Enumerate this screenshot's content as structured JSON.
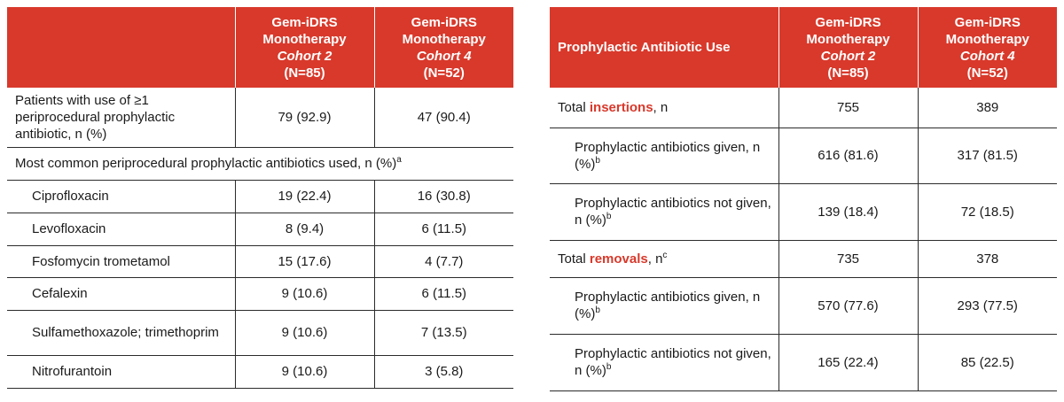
{
  "left_table": {
    "header": {
      "col1_label": "",
      "col2": {
        "line1": "Gem-iDRS",
        "line2": "Monotherapy",
        "line3": "Cohort 2",
        "line4": "(N=85)"
      },
      "col3": {
        "line1": "Gem-iDRS",
        "line2": "Monotherapy",
        "line3": "Cohort 4",
        "line4": "(N=52)"
      }
    },
    "summary_row": {
      "label": "Patients with use of ≥1 periprocedural prophylactic antibiotic, n (%)",
      "cohort2": "79 (92.9)",
      "cohort4": "47 (90.4)"
    },
    "section_row": {
      "label": "Most common periprocedural prophylactic antibiotics used, n (%)",
      "sup": "a"
    },
    "rows": [
      {
        "label": "Ciprofloxacin",
        "cohort2": "19 (22.4)",
        "cohort4": "16 (30.8)"
      },
      {
        "label": "Levofloxacin",
        "cohort2": "8 (9.4)",
        "cohort4": "6 (11.5)"
      },
      {
        "label": "Fosfomycin trometamol",
        "cohort2": "15 (17.6)",
        "cohort4": "4 (7.7)"
      },
      {
        "label": "Cefalexin",
        "cohort2": "9 (10.6)",
        "cohort4": "6 (11.5)"
      },
      {
        "label": "Sulfamethoxazole; trimethoprim",
        "cohort2": "9 (10.6)",
        "cohort4": "7 (13.5)"
      },
      {
        "label": "Nitrofurantoin",
        "cohort2": "9 (10.6)",
        "cohort4": "3 (5.8)"
      }
    ]
  },
  "right_table": {
    "header": {
      "col1_label": "Prophylactic Antibiotic Use",
      "col2": {
        "line1": "Gem-iDRS",
        "line2": "Monotherapy",
        "line3": "Cohort 2",
        "line4": "(N=85)"
      },
      "col3": {
        "line1": "Gem-iDRS",
        "line2": "Monotherapy",
        "line3": "Cohort 4",
        "line4": "(N=52)"
      }
    },
    "insertions": {
      "prefix": "Total",
      "highlight": "insertions",
      "suffix": ", n",
      "cohort2": "755",
      "cohort4": "389"
    },
    "insertions_given": {
      "label": "Prophylactic antibiotics given, n (%)",
      "sup": "b",
      "cohort2": "616 (81.6)",
      "cohort4": "317 (81.5)"
    },
    "insertions_not_given": {
      "label": "Prophylactic antibiotics not given, n (%)",
      "sup": "b",
      "cohort2": "139 (18.4)",
      "cohort4": "72 (18.5)"
    },
    "removals": {
      "prefix": "Total",
      "highlight": "removals",
      "suffix": ", n",
      "sup": "c",
      "cohort2": "735",
      "cohort4": "378"
    },
    "removals_given": {
      "label": "Prophylactic antibiotics given, n (%)",
      "sup": "b",
      "cohort2": "570 (77.6)",
      "cohort4": "293 (77.5)"
    },
    "removals_not_given": {
      "label": "Prophylactic antibiotics not given, n (%)",
      "sup": "b",
      "cohort2": "165 (22.4)",
      "cohort4": "85 (22.5)"
    }
  }
}
